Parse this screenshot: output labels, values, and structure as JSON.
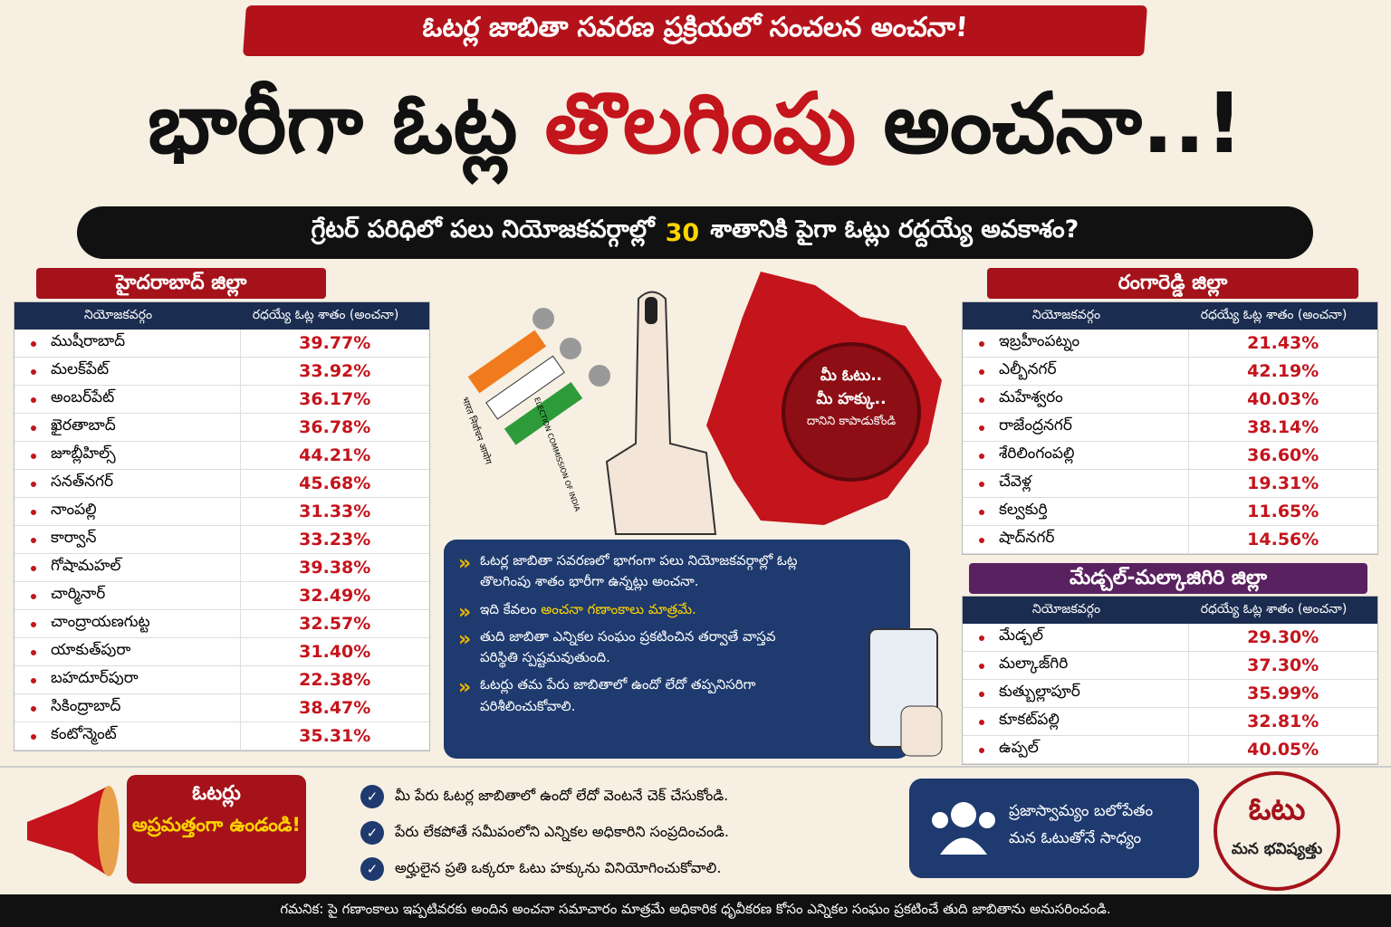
{
  "header": {
    "kicker": "ఓటర్ల జాబితా సవరణ ప్రక్రియలో సంచలన అంచనా!",
    "title_parts": [
      "భారీగా ఓట్ల",
      "తొలగింపు",
      "అంచనా..!"
    ],
    "subtitle_parts": [
      "గ్రేటర్ పరిధిలో పలు నియోజకవర్గాల్లో",
      "30",
      "శాతానికి పైగా ఓట్లు రద్దయ్యే అవకాశం?"
    ]
  },
  "hyderabad": {
    "title": "హైదరాబాద్ జిల్లా",
    "columns": [
      "నియోజకవర్గం",
      "రధయ్యే ఓట్ల శాతం (అంచనా)"
    ],
    "rows": [
      [
        "ముషీరాబాద్",
        "39.77%"
      ],
      [
        "మలక్‌పేట్",
        "33.92%"
      ],
      [
        "అంబర్‌పేట్",
        "36.17%"
      ],
      [
        "ఖైరతాబాద్",
        "36.78%"
      ],
      [
        "జూబ్లీహిల్స్",
        "44.21%"
      ],
      [
        "సనత్‌నగర్",
        "45.68%"
      ],
      [
        "నాంపల్లి",
        "31.33%"
      ],
      [
        "కార్వాన్",
        "33.23%"
      ],
      [
        "గోషామహల్",
        "39.38%"
      ],
      [
        "చార్మినార్",
        "32.49%"
      ],
      [
        "చాంద్రాయణగుట్ట",
        "32.57%"
      ],
      [
        "యాకుత్‌పురా",
        "31.40%"
      ],
      [
        "బహదూర్‌పురా",
        "22.38%"
      ],
      [
        "సికింద్రాబాద్",
        "38.47%"
      ],
      [
        "కంటోన్మెంట్",
        "35.31%"
      ]
    ]
  },
  "rangareddy": {
    "title": "రంగారెడ్డి జిల్లా",
    "columns": [
      "నియోజకవర్గం",
      "రధయ్యే ఓట్ల శాతం (అంచనా)"
    ],
    "rows": [
      [
        "ఇబ్రహీంపట్నం",
        "21.43%"
      ],
      [
        "ఎల్బీనగర్",
        "42.19%"
      ],
      [
        "మహేశ్వరం",
        "40.03%"
      ],
      [
        "రాజేంద్రనగర్",
        "38.14%"
      ],
      [
        "శేరిలింగంపల్లి",
        "36.60%"
      ],
      [
        "చేవెళ్ల",
        "19.31%"
      ],
      [
        "కల్వకుర్తి",
        "11.65%"
      ],
      [
        "షాద్‌నగర్",
        "14.56%"
      ]
    ]
  },
  "medchal": {
    "title": "మేడ్చల్-మల్కాజిగిరి జిల్లా",
    "columns": [
      "నియోజకవర్గం",
      "రధయ్యే ఓట్ల శాతం (అంచనా)"
    ],
    "rows": [
      [
        "మేడ్చల్",
        "29.30%"
      ],
      [
        "మల్కాజ్‌గిరి",
        "37.30%"
      ],
      [
        "కుత్బుల్లాపూర్",
        "35.99%"
      ],
      [
        "కూకట్‌పల్లి",
        "32.81%"
      ],
      [
        "ఉప్పల్",
        "40.05%"
      ]
    ]
  },
  "logo": {
    "hindi": "भारत निर्वाचन आयोग",
    "english": "ELECTION COMMISSION OF INDIA"
  },
  "stamp": [
    "మీ ఓటు..",
    "మీ హక్కు..",
    "దానిని కాపాడుకోండి"
  ],
  "info": [
    "ఓటర్ల జాబితా సవరణలో భాగంగా పలు నియోజకవర్గాల్లో ఓట్ల తొలగింపు శాతం భారీగా ఉన్నట్లు అంచనా.",
    [
      "ఇది కేవలం",
      "అంచనా గణాంకాలు మాత్రమే."
    ],
    "తుది జాబితా ఎన్నికల సంఘం ప్రకటించిన తర్వాతే వాస్తవ పరిస్థితి స్పష్టమవుతుంది.",
    "ఓటర్లు తమ పేరు జాబితాలో ఉందో లేదో తప్పనిసరిగా పరిశీలించుకోవాలి."
  ],
  "alert": [
    "ఓటర్లు",
    "అప్రమత్తంగా ఉండండి!"
  ],
  "checklist": [
    "మీ పేరు ఓటర్ల జాబితాలో ఉందో లేదో వెంటనే చెక్ చేసుకోండి.",
    "పేరు లేకపోతే సమీపంలోని ఎన్నికల అధికారిని సంప్రదించండి.",
    "అర్హులైన ప్రతి ఒక్కరూ ఓటు హక్కును వినియోగించుకోవాలి."
  ],
  "democracy": [
    "ప్రజాస్వామ్యం బలోపేతం",
    "మన ఓటుతోనే సాధ్యం"
  ],
  "badge": [
    "ఓటు",
    "మన భవిష్యత్తు"
  ],
  "footer": "గమనిక: పై గణాంకాలు ఇప్పటివరకు అందిన అంచనా సమాచారం మాత్రమే అధికారిక ధృవీకరణ కోసం ఎన్నికల సంఘం ప్రకటించే తుది జాబితాను అనుసరించండి."
}
